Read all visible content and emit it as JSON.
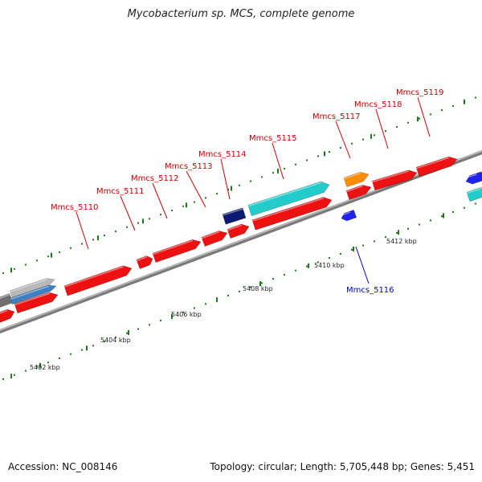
{
  "title": "Mycobacterium sp. MCS, complete genome",
  "footer": {
    "accession": "Accession: NC_008146",
    "topology": "Topology: circular; Length: 5,705,448 bp; Genes: 5,451"
  },
  "colors": {
    "forward_gene": "#ee1111",
    "reverse_gene": "#2222ee",
    "rna_gene": "#22cccc",
    "misc_gene_orange": "#ff8c00",
    "misc_gene_navy": "#0a1a6e",
    "backbone": "#888888",
    "tick": "#1a7a1a",
    "label_forward": "#cc0000",
    "label_reverse": "#0000cc"
  },
  "scale": {
    "unit": "kbp",
    "tick_labels": [
      "5402 kbp",
      "5404 kbp",
      "5406 kbp",
      "5408 kbp",
      "5410 kbp",
      "5412 kbp"
    ]
  },
  "gene_labels": [
    {
      "name": "Mmcs_5110",
      "strand": "forward"
    },
    {
      "name": "Mmcs_5111",
      "strand": "forward"
    },
    {
      "name": "Mmcs_5112",
      "strand": "forward"
    },
    {
      "name": "Mmcs_5113",
      "strand": "forward"
    },
    {
      "name": "Mmcs_5114",
      "strand": "forward"
    },
    {
      "name": "Mmcs_5115",
      "strand": "forward"
    },
    {
      "name": "Mmcs_5116",
      "strand": "reverse"
    },
    {
      "name": "Mmcs_5117",
      "strand": "forward"
    },
    {
      "name": "Mmcs_5118",
      "strand": "forward"
    },
    {
      "name": "Mmcs_5119",
      "strand": "forward"
    }
  ]
}
